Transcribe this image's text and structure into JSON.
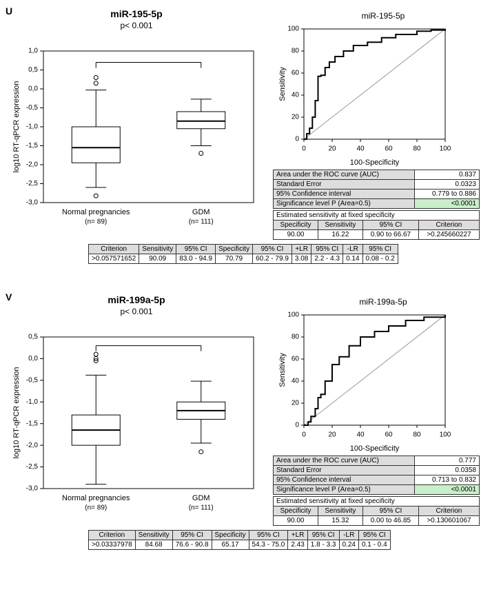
{
  "panels": [
    {
      "letter": "U",
      "title": "miR-195-5p",
      "pvalue": "p< 0.001",
      "boxplot": {
        "ylabel": "log10 RT-qPCR expression",
        "ylim": [
          -3.0,
          1.0
        ],
        "yticks": [
          -3.0,
          -2.5,
          -2.0,
          -1.5,
          -1.0,
          -0.5,
          0.0,
          0.5,
          1.0
        ],
        "groups": [
          {
            "label": "Normal pregnancies",
            "n": "(n= 89)",
            "median": -1.55,
            "q1": -1.95,
            "q3": -1.0,
            "whisker_low": -2.6,
            "whisker_high": -0.03,
            "outliers": [
              0.3,
              0.15,
              -2.82
            ]
          },
          {
            "label": "GDM",
            "n": "(n= 111)",
            "median": -0.85,
            "q1": -1.05,
            "q3": -0.6,
            "whisker_low": -1.5,
            "whisker_high": -0.27,
            "outliers": [
              -1.7
            ]
          }
        ],
        "bracket_y": 0.7,
        "color": "#000",
        "bg": "#fff"
      },
      "roc": {
        "xlabel": "100-Specificity",
        "ylabel": "Sensitivity",
        "xlim": [
          0,
          100
        ],
        "ylim": [
          0,
          100
        ],
        "xticks": [
          0,
          20,
          40,
          60,
          80,
          100
        ],
        "yticks": [
          0,
          20,
          40,
          60,
          80,
          100
        ],
        "curve": [
          [
            0,
            0
          ],
          [
            2,
            5
          ],
          [
            4,
            10
          ],
          [
            6,
            20
          ],
          [
            8,
            35
          ],
          [
            10,
            57
          ],
          [
            12,
            58
          ],
          [
            15,
            65
          ],
          [
            18,
            70
          ],
          [
            22,
            75
          ],
          [
            28,
            80
          ],
          [
            35,
            85
          ],
          [
            45,
            88
          ],
          [
            55,
            92
          ],
          [
            65,
            95
          ],
          [
            80,
            98
          ],
          [
            90,
            99
          ],
          [
            100,
            100
          ]
        ],
        "diag_color": "#999",
        "curve_color": "#000"
      },
      "stats": {
        "rows": [
          {
            "k": "Area under the ROC curve (AUC)",
            "v": "0.837"
          },
          {
            "k": "Standard Error",
            "v": "0.0323"
          },
          {
            "k": "95% Confidence interval",
            "v": "0.779 to 0.886"
          },
          {
            "k": "Significance level P (Area=0.5)",
            "v": "<0.0001",
            "hl": true
          }
        ]
      },
      "est": {
        "title": "Estimated sensitivity at fixed specificity",
        "headers": [
          "Specificity",
          "Sensitivity",
          "95% CI",
          "Criterion"
        ],
        "row": [
          "90.00",
          "16.22",
          "0.90 to 66.67",
          ">0.245660227"
        ]
      },
      "crit": {
        "headers": [
          "Criterion",
          "Sensitivity",
          "95% CI",
          "Specificity",
          "95% CI",
          "+LR",
          "95% CI",
          "-LR",
          "95% CI"
        ],
        "row": [
          ">0.057571652",
          "90.09",
          "83.0 - 94.9",
          "70.79",
          "60.2 - 79.9",
          "3.08",
          "2.2 - 4.3",
          "0.14",
          "0.08 - 0.2"
        ]
      }
    },
    {
      "letter": "V",
      "title": "miR-199a-5p",
      "pvalue": "p< 0.001",
      "boxplot": {
        "ylabel": "log10 RT-qPCR expression",
        "ylim": [
          -3.0,
          0.5
        ],
        "yticks": [
          -3.0,
          -2.5,
          -2.0,
          -1.5,
          -1.0,
          -0.5,
          0.0,
          0.5
        ],
        "groups": [
          {
            "label": "Normal pregnancies",
            "n": "(n= 89)",
            "median": -1.65,
            "q1": -2.0,
            "q3": -1.3,
            "whisker_low": -2.9,
            "whisker_high": -0.38,
            "outliers": [
              0.1,
              0.0,
              -0.05
            ]
          },
          {
            "label": "GDM",
            "n": "(n= 111)",
            "median": -1.2,
            "q1": -1.4,
            "q3": -1.0,
            "whisker_low": -1.95,
            "whisker_high": -0.52,
            "outliers": [
              -2.15
            ]
          }
        ],
        "bracket_y": 0.3,
        "color": "#000",
        "bg": "#fff"
      },
      "roc": {
        "xlabel": "100-Specificity",
        "ylabel": "Sensitivity",
        "xlim": [
          0,
          100
        ],
        "ylim": [
          0,
          100
        ],
        "xticks": [
          0,
          20,
          40,
          60,
          80,
          100
        ],
        "yticks": [
          0,
          20,
          40,
          60,
          80,
          100
        ],
        "curve": [
          [
            0,
            0
          ],
          [
            3,
            3
          ],
          [
            5,
            8
          ],
          [
            8,
            15
          ],
          [
            10,
            25
          ],
          [
            12,
            28
          ],
          [
            15,
            40
          ],
          [
            20,
            55
          ],
          [
            25,
            62
          ],
          [
            32,
            72
          ],
          [
            40,
            80
          ],
          [
            50,
            85
          ],
          [
            60,
            90
          ],
          [
            72,
            95
          ],
          [
            85,
            98
          ],
          [
            100,
            100
          ]
        ],
        "diag_color": "#999",
        "curve_color": "#000"
      },
      "stats": {
        "rows": [
          {
            "k": "Area under the ROC curve (AUC)",
            "v": "0.777"
          },
          {
            "k": "Standard Error",
            "v": "0.0358"
          },
          {
            "k": "95% Confidence interval",
            "v": "0.713 to 0.832"
          },
          {
            "k": "Significance level P (Area=0.5)",
            "v": "<0.0001",
            "hl": true
          }
        ]
      },
      "est": {
        "title": "Estimated sensitivity at fixed specificity",
        "headers": [
          "Specificity",
          "Sensitivity",
          "95% CI",
          "Criterion"
        ],
        "row": [
          "90.00",
          "15.32",
          "0.00 to 46.85",
          ">0.130601067"
        ]
      },
      "crit": {
        "headers": [
          "Criterion",
          "Sensitivity",
          "95% CI",
          "Specificity",
          "95% CI",
          "+LR",
          "95% CI",
          "-LR",
          "95% CI"
        ],
        "row": [
          ">0.03337978",
          "84.68",
          "76.6 - 90.8",
          "65.17",
          "54.3 - 75.0",
          "2.43",
          "1.8 - 3.3",
          "0.24",
          "0.1 - 0.4"
        ]
      }
    }
  ]
}
